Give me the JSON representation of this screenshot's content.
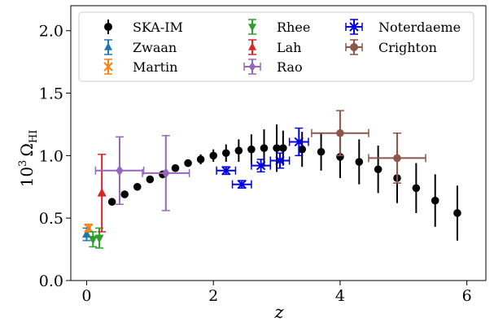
{
  "chart_data": {
    "type": "scatter",
    "xlabel": "z",
    "ylabel_main": "10",
    "ylabel_exp": "3",
    "ylabel_symbol": "Ω",
    "ylabel_sub": "HI",
    "xlim": [
      -0.25,
      6.3
    ],
    "ylim": [
      0.0,
      2.2
    ],
    "xticks": [
      0,
      2,
      4,
      6
    ],
    "xtick_labels": [
      "0",
      "2",
      "4",
      "6"
    ],
    "yticks": [
      0.0,
      0.5,
      1.0,
      1.5,
      2.0
    ],
    "ytick_labels": [
      "0.0",
      "0.5",
      "1.0",
      "1.5",
      "2.0"
    ],
    "grid": false,
    "legend_position": "top",
    "series": [
      {
        "name": "SKA-IM",
        "color": "#000000",
        "marker": "circle",
        "points": [
          {
            "x": 0.4,
            "y": 0.63,
            "yerr": 0.03
          },
          {
            "x": 0.6,
            "y": 0.69,
            "yerr": 0.03
          },
          {
            "x": 0.8,
            "y": 0.75,
            "yerr": 0.03
          },
          {
            "x": 1.0,
            "y": 0.81,
            "yerr": 0.03
          },
          {
            "x": 1.2,
            "y": 0.85,
            "yerr": 0.03
          },
          {
            "x": 1.4,
            "y": 0.9,
            "yerr": 0.03
          },
          {
            "x": 1.6,
            "y": 0.94,
            "yerr": 0.03
          },
          {
            "x": 1.8,
            "y": 0.97,
            "yerr": 0.04
          },
          {
            "x": 2.0,
            "y": 1.0,
            "yerr": 0.05
          },
          {
            "x": 2.2,
            "y": 1.02,
            "yerr": 0.07
          },
          {
            "x": 2.4,
            "y": 1.04,
            "yerr": 0.09
          },
          {
            "x": 2.6,
            "y": 1.05,
            "yerr": 0.12
          },
          {
            "x": 2.8,
            "y": 1.06,
            "yerr": 0.15
          },
          {
            "x": 3.0,
            "y": 1.06,
            "yerr": 0.19
          },
          {
            "x": 3.1,
            "y": 1.06,
            "yerr": 0.14
          },
          {
            "x": 3.4,
            "y": 1.05,
            "yerr": 0.14
          },
          {
            "x": 3.7,
            "y": 1.03,
            "yerr": 0.15
          },
          {
            "x": 4.0,
            "y": 0.99,
            "yerr": 0.17
          },
          {
            "x": 4.3,
            "y": 0.95,
            "yerr": 0.18
          },
          {
            "x": 4.6,
            "y": 0.89,
            "yerr": 0.19
          },
          {
            "x": 4.9,
            "y": 0.82,
            "yerr": 0.2
          },
          {
            "x": 5.2,
            "y": 0.74,
            "yerr": 0.2
          },
          {
            "x": 5.5,
            "y": 0.64,
            "yerr": 0.21
          },
          {
            "x": 5.85,
            "y": 0.54,
            "yerr": 0.22
          }
        ]
      },
      {
        "name": "Zwaan",
        "color": "#1f77b4",
        "marker": "triangle-up",
        "points": [
          {
            "x": 0.0,
            "y": 0.37,
            "yerr": 0.05
          }
        ]
      },
      {
        "name": "Martin",
        "color": "#ff7f0e",
        "marker": "x",
        "points": [
          {
            "x": 0.03,
            "y": 0.42,
            "yerr": 0.03
          }
        ]
      },
      {
        "name": "Rhee",
        "color": "#2ca02c",
        "marker": "triangle-down",
        "points": [
          {
            "x": 0.1,
            "y": 0.33,
            "yerr": 0.06
          },
          {
            "x": 0.2,
            "y": 0.34,
            "yerr": 0.08
          }
        ]
      },
      {
        "name": "Lah",
        "color": "#d62728",
        "marker": "triangle-up",
        "points": [
          {
            "x": 0.24,
            "y": 0.7,
            "yerr": 0.31
          }
        ]
      },
      {
        "name": "Rao",
        "color": "#9467bd",
        "marker": "diamond",
        "points": [
          {
            "x": 0.52,
            "y": 0.88,
            "xerr": 0.38,
            "yerr": 0.27
          },
          {
            "x": 1.25,
            "y": 0.86,
            "xerr": 0.37,
            "yerr": 0.3
          }
        ]
      },
      {
        "name": "Noterdaeme",
        "color": "#0000e0",
        "marker": "x",
        "points": [
          {
            "x": 2.2,
            "y": 0.88,
            "xerr": 0.15,
            "yerr": 0.03
          },
          {
            "x": 2.45,
            "y": 0.77,
            "xerr": 0.15,
            "yerr": 0.03
          },
          {
            "x": 2.75,
            "y": 0.92,
            "xerr": 0.15,
            "yerr": 0.05
          },
          {
            "x": 3.05,
            "y": 0.96,
            "xerr": 0.15,
            "yerr": 0.06
          },
          {
            "x": 3.35,
            "y": 1.11,
            "xerr": 0.15,
            "yerr": 0.11
          }
        ]
      },
      {
        "name": "Crighton",
        "color": "#8c564b",
        "marker": "circle",
        "points": [
          {
            "x": 4.0,
            "y": 1.18,
            "xerr": 0.45,
            "yerr": 0.18
          },
          {
            "x": 4.9,
            "y": 0.98,
            "xerr": 0.45,
            "yerr": 0.2
          }
        ]
      }
    ],
    "legend": [
      {
        "series": "SKA-IM"
      },
      {
        "series": "Rhee"
      },
      {
        "series": "Noterdaeme"
      },
      {
        "series": "Zwaan"
      },
      {
        "series": "Lah"
      },
      {
        "series": "Crighton"
      },
      {
        "series": "Martin"
      },
      {
        "series": "Rao"
      }
    ]
  }
}
